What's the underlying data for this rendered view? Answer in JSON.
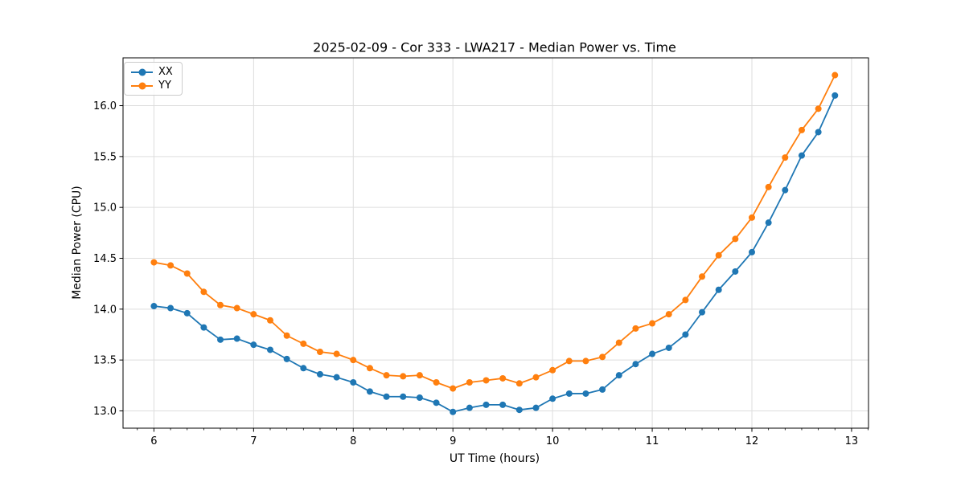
{
  "chart_data": {
    "type": "line",
    "title": "2025-02-09 - Cor 333 - LWA217 - Median Power vs. Time",
    "xlabel": "UT Time (hours)",
    "ylabel": "Median Power (CPU)",
    "xlim": [
      5.69,
      13.17
    ],
    "ylim": [
      12.83,
      16.47
    ],
    "x_ticks": [
      6,
      7,
      8,
      9,
      10,
      11,
      12,
      13
    ],
    "y_ticks": [
      13.0,
      13.5,
      14.0,
      14.5,
      15.0,
      15.5,
      16.0
    ],
    "x_minor_step_per_hour": 6,
    "grid": true,
    "legend_position": "upper left",
    "style": {
      "grid_color": "#dddddd",
      "spine_color": "#000000",
      "tick_color": "#000000",
      "text_color": "#000000",
      "marker_radius": 4,
      "line_width": 1.8
    },
    "x": [
      6.0,
      6.1667,
      6.3333,
      6.5,
      6.6667,
      6.8333,
      7.0,
      7.1667,
      7.3333,
      7.5,
      7.6667,
      7.8333,
      8.0,
      8.1667,
      8.3333,
      8.5,
      8.6667,
      8.8333,
      9.0,
      9.1667,
      9.3333,
      9.5,
      9.6667,
      9.8333,
      10.0,
      10.1667,
      10.3333,
      10.5,
      10.6667,
      10.8333,
      11.0,
      11.1667,
      11.3333,
      11.5,
      11.6667,
      11.8333,
      12.0,
      12.1667,
      12.3333,
      12.5,
      12.6667,
      12.8333
    ],
    "series": [
      {
        "name": "XX",
        "color": "#1f77b4",
        "values": [
          14.03,
          14.01,
          13.96,
          13.82,
          13.7,
          13.71,
          13.65,
          13.6,
          13.51,
          13.42,
          13.36,
          13.33,
          13.28,
          13.19,
          13.14,
          13.14,
          13.13,
          13.08,
          12.99,
          13.03,
          13.06,
          13.06,
          13.01,
          13.03,
          13.12,
          13.17,
          13.17,
          13.21,
          13.35,
          13.46,
          13.56,
          13.62,
          13.75,
          13.97,
          14.19,
          14.37,
          14.56,
          14.85,
          15.17,
          15.51,
          15.74,
          16.1
        ]
      },
      {
        "name": "YY",
        "color": "#ff7f0e",
        "values": [
          14.46,
          14.43,
          14.35,
          14.17,
          14.04,
          14.01,
          13.95,
          13.89,
          13.74,
          13.66,
          13.58,
          13.56,
          13.5,
          13.42,
          13.35,
          13.34,
          13.35,
          13.28,
          13.22,
          13.28,
          13.3,
          13.32,
          13.27,
          13.33,
          13.4,
          13.49,
          13.49,
          13.53,
          13.67,
          13.81,
          13.86,
          13.95,
          14.09,
          14.32,
          14.53,
          14.69,
          14.9,
          15.2,
          15.49,
          15.76,
          15.97,
          16.3
        ]
      }
    ]
  }
}
